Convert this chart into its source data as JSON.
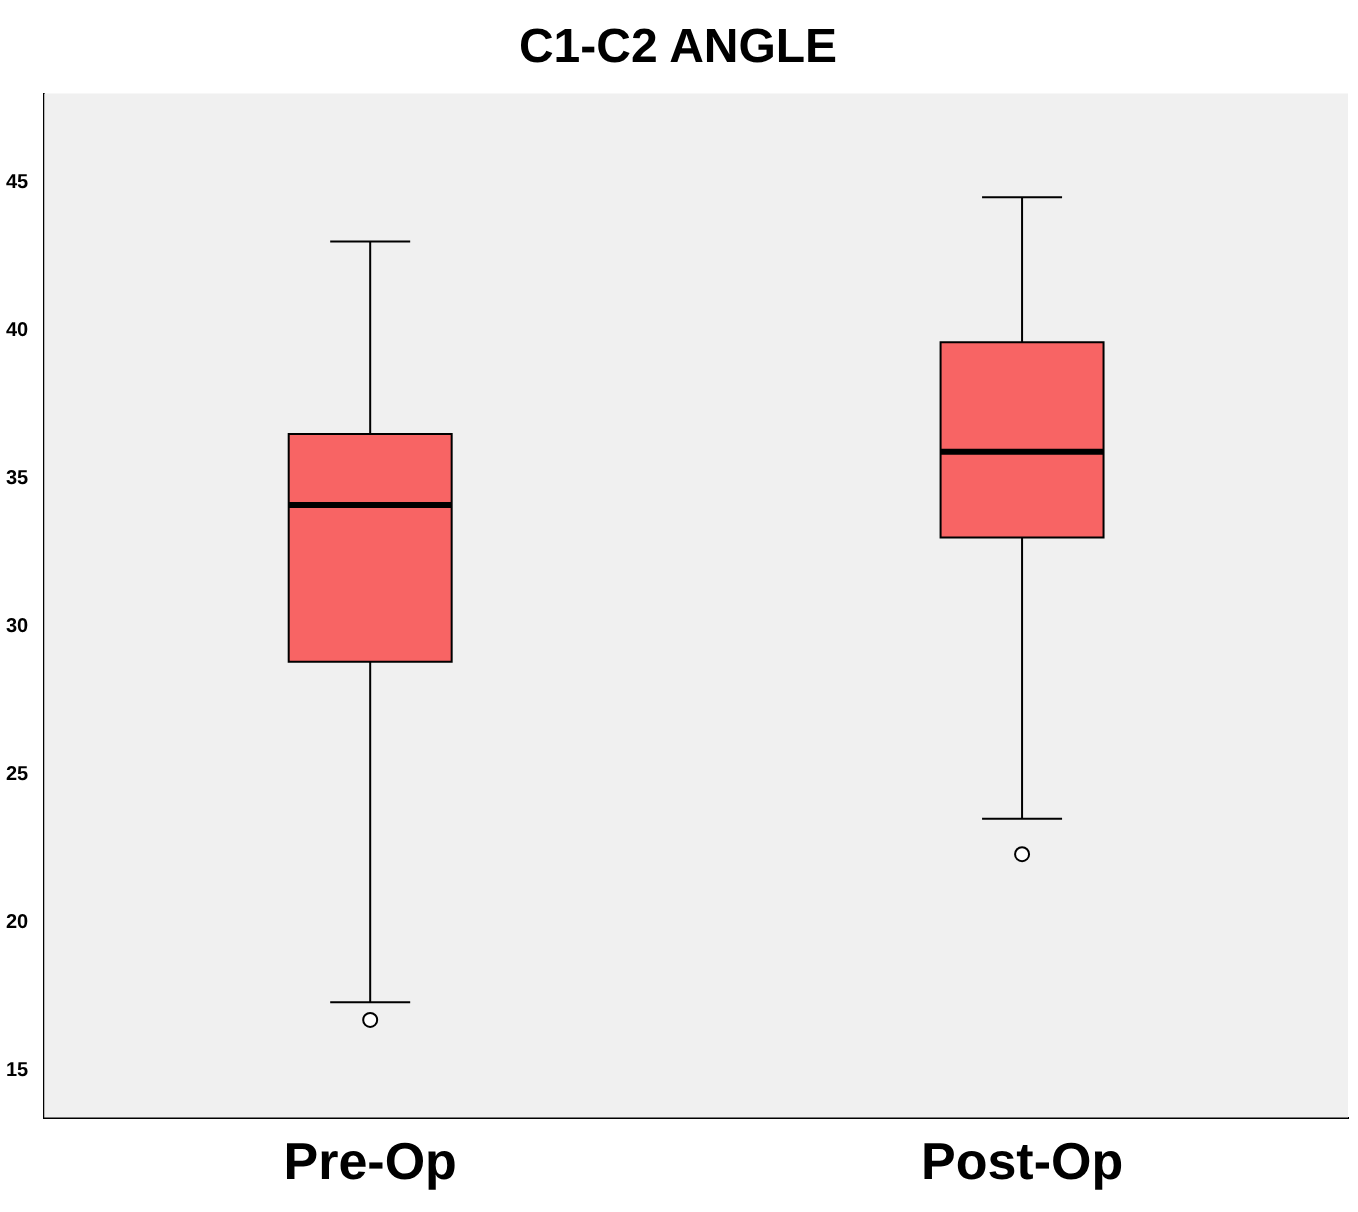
{
  "chart_data": {
    "type": "box",
    "title": "C1-C2 ANGLE",
    "categories": [
      "Pre-Op",
      "Post-Op"
    ],
    "color": "#f86464",
    "boxes": [
      {
        "low": 17.3,
        "q1": 28.8,
        "median": 34.1,
        "q3": 36.5,
        "high": 43.0,
        "outliers": [
          16.7
        ]
      },
      {
        "low": 23.5,
        "q1": 33.0,
        "median": 35.9,
        "q3": 39.6,
        "high": 44.5,
        "outliers": [
          22.3
        ]
      }
    ],
    "ylim": [
      13.4,
      48
    ],
    "yticks": [
      15,
      20,
      25,
      30,
      35,
      40,
      45
    ],
    "grid": false,
    "legend": false
  }
}
